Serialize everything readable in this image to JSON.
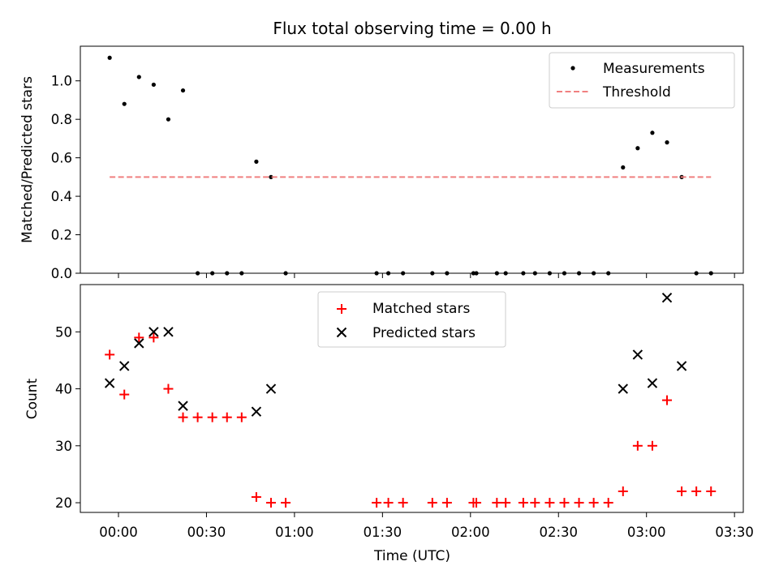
{
  "title": "Flux total observing time = 0.00 h",
  "x_axis": {
    "label": "Time (UTC)",
    "ticks": [
      "00:00",
      "00:30",
      "01:00",
      "01:30",
      "02:00",
      "02:30",
      "03:00",
      "03:30"
    ],
    "tick_minutes": [
      0,
      30,
      60,
      90,
      120,
      150,
      180,
      210
    ],
    "range_minutes": [
      -13,
      213
    ]
  },
  "chart_data": [
    {
      "type": "scatter",
      "ylabel": "Matched/Predicted stars",
      "ylim": [
        0,
        1.18
      ],
      "yticks": [
        "0.0",
        "0.2",
        "0.4",
        "0.6",
        "0.8",
        "1.0"
      ],
      "ytick_values": [
        0,
        0.2,
        0.4,
        0.6,
        0.8,
        1.0
      ],
      "legend_position": "top-right",
      "series": [
        {
          "name": "Measurements",
          "marker": "dot",
          "color": "#000000",
          "points": [
            [
              "23:57",
              1.12
            ],
            [
              "00:02",
              0.88
            ],
            [
              "00:07",
              1.02
            ],
            [
              "00:12",
              0.98
            ],
            [
              "00:17",
              0.8
            ],
            [
              "00:22",
              0.95
            ],
            [
              "00:27",
              0.0
            ],
            [
              "00:32",
              0.0
            ],
            [
              "00:37",
              0.0
            ],
            [
              "00:42",
              0.0
            ],
            [
              "00:47",
              0.58
            ],
            [
              "00:52",
              0.5
            ],
            [
              "00:57",
              0.0
            ],
            [
              "01:28",
              0.0
            ],
            [
              "01:32",
              0.0
            ],
            [
              "01:37",
              0.0
            ],
            [
              "01:47",
              0.0
            ],
            [
              "01:52",
              0.0
            ],
            [
              "02:01",
              0.0
            ],
            [
              "02:02",
              0.0
            ],
            [
              "02:09",
              0.0
            ],
            [
              "02:12",
              0.0
            ],
            [
              "02:18",
              0.0
            ],
            [
              "02:22",
              0.0
            ],
            [
              "02:27",
              0.0
            ],
            [
              "02:32",
              0.0
            ],
            [
              "02:37",
              0.0
            ],
            [
              "02:42",
              0.0
            ],
            [
              "02:47",
              0.0
            ],
            [
              "02:52",
              0.55
            ],
            [
              "02:57",
              0.65
            ],
            [
              "03:02",
              0.73
            ],
            [
              "03:07",
              0.68
            ],
            [
              "03:12",
              0.5
            ],
            [
              "03:17",
              0.0
            ],
            [
              "03:22",
              0.0
            ]
          ]
        },
        {
          "name": "Threshold",
          "marker": "dashed-line",
          "color": "#f08080",
          "value": 0.5,
          "x_range": [
            "23:57",
            "03:22"
          ]
        }
      ]
    },
    {
      "type": "scatter",
      "ylabel": "Count",
      "ylim": [
        18.3,
        58.3
      ],
      "yticks": [
        "20",
        "30",
        "40",
        "50"
      ],
      "ytick_values": [
        20,
        30,
        40,
        50
      ],
      "legend_position": "top-center",
      "series": [
        {
          "name": "Matched stars",
          "marker": "plus",
          "color": "#ff0000",
          "points": [
            [
              "23:57",
              46
            ],
            [
              "00:02",
              39
            ],
            [
              "00:07",
              49
            ],
            [
              "00:12",
              49
            ],
            [
              "00:17",
              40
            ],
            [
              "00:22",
              35
            ],
            [
              "00:27",
              35
            ],
            [
              "00:32",
              35
            ],
            [
              "00:37",
              35
            ],
            [
              "00:42",
              35
            ],
            [
              "00:47",
              21
            ],
            [
              "00:52",
              20
            ],
            [
              "00:57",
              20
            ],
            [
              "01:28",
              20
            ],
            [
              "01:32",
              20
            ],
            [
              "01:37",
              20
            ],
            [
              "01:47",
              20
            ],
            [
              "01:52",
              20
            ],
            [
              "02:01",
              20
            ],
            [
              "02:02",
              20
            ],
            [
              "02:09",
              20
            ],
            [
              "02:12",
              20
            ],
            [
              "02:18",
              20
            ],
            [
              "02:22",
              20
            ],
            [
              "02:27",
              20
            ],
            [
              "02:32",
              20
            ],
            [
              "02:37",
              20
            ],
            [
              "02:42",
              20
            ],
            [
              "02:47",
              20
            ],
            [
              "02:52",
              22
            ],
            [
              "02:57",
              30
            ],
            [
              "03:02",
              30
            ],
            [
              "03:07",
              38
            ],
            [
              "03:12",
              22
            ],
            [
              "03:17",
              22
            ],
            [
              "03:22",
              22
            ]
          ]
        },
        {
          "name": "Predicted stars",
          "marker": "x",
          "color": "#000000",
          "points": [
            [
              "23:57",
              41
            ],
            [
              "00:02",
              44
            ],
            [
              "00:07",
              48
            ],
            [
              "00:12",
              50
            ],
            [
              "00:17",
              50
            ],
            [
              "00:22",
              37
            ],
            [
              "00:47",
              36
            ],
            [
              "00:52",
              40
            ],
            [
              "02:52",
              40
            ],
            [
              "02:57",
              46
            ],
            [
              "03:02",
              41
            ],
            [
              "03:07",
              56
            ],
            [
              "03:12",
              44
            ]
          ]
        }
      ]
    }
  ]
}
